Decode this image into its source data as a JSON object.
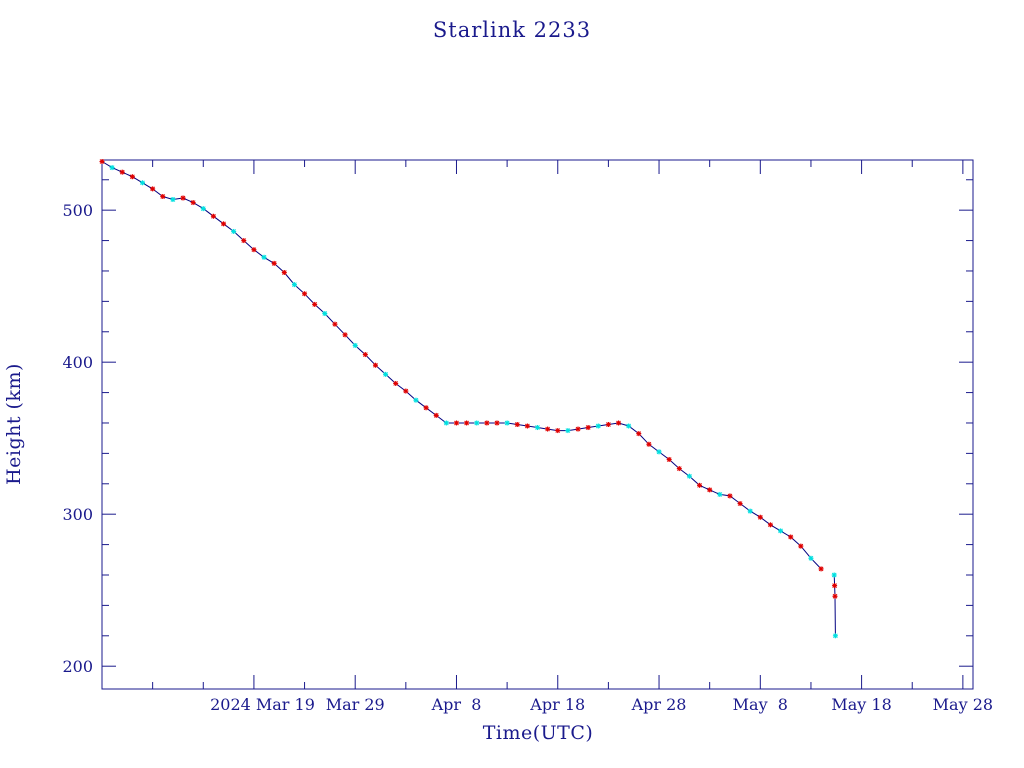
{
  "chart_data": {
    "type": "line",
    "title": "Starlink 2233",
    "xlabel": "Time(UTC)",
    "ylabel": "Height (km)",
    "x_tick_labels": [
      "2024 Mar 19",
      "Mar 29",
      "Apr  8",
      "Apr 18",
      "Apr 28",
      "May  8",
      "May 18",
      "May 28"
    ],
    "y_tick_labels": [
      "200",
      "300",
      "400",
      "500"
    ],
    "xlim": [
      "2024-03-04",
      "2024-05-29"
    ],
    "ylim": [
      185,
      533
    ],
    "colors": {
      "frame": "#1a1a8c",
      "line": "#000080",
      "marker_a": "#e00000",
      "marker_b": "#00e0e0"
    },
    "series": [
      {
        "x": [
          "2024-03-04",
          "2024-03-05",
          "2024-03-06",
          "2024-03-07",
          "2024-03-08",
          "2024-03-09",
          "2024-03-10",
          "2024-03-11",
          "2024-03-12",
          "2024-03-13",
          "2024-03-14",
          "2024-03-15",
          "2024-03-16",
          "2024-03-17",
          "2024-03-18",
          "2024-03-19",
          "2024-03-20",
          "2024-03-21",
          "2024-03-22",
          "2024-03-23",
          "2024-03-24",
          "2024-03-25",
          "2024-03-26",
          "2024-03-27",
          "2024-03-28",
          "2024-03-29",
          "2024-03-30",
          "2024-03-31",
          "2024-04-01",
          "2024-04-02",
          "2024-04-03",
          "2024-04-04",
          "2024-04-05",
          "2024-04-06",
          "2024-04-07",
          "2024-04-08",
          "2024-04-09",
          "2024-04-10",
          "2024-04-11",
          "2024-04-12",
          "2024-04-13",
          "2024-04-14",
          "2024-04-15",
          "2024-04-16",
          "2024-04-17",
          "2024-04-18",
          "2024-04-19",
          "2024-04-20",
          "2024-04-21",
          "2024-04-22",
          "2024-04-23",
          "2024-04-24",
          "2024-04-25",
          "2024-04-26",
          "2024-04-27",
          "2024-04-28",
          "2024-04-29",
          "2024-04-30",
          "2024-05-01",
          "2024-05-02",
          "2024-05-03",
          "2024-05-04",
          "2024-05-05",
          "2024-05-06",
          "2024-05-07",
          "2024-05-08",
          "2024-05-09",
          "2024-05-10",
          "2024-05-11",
          "2024-05-12",
          "2024-05-13",
          "2024-05-14"
        ],
        "y": [
          532,
          528,
          525,
          522,
          518,
          514,
          509,
          507,
          508,
          505,
          501,
          496,
          491,
          486,
          480,
          474,
          469,
          465,
          459,
          451,
          445,
          438,
          432,
          425,
          418,
          411,
          405,
          398,
          392,
          386,
          381,
          375,
          370,
          365,
          360,
          360,
          360,
          360,
          360,
          360,
          360,
          359,
          358,
          357,
          356,
          355,
          355,
          356,
          357,
          358,
          359,
          360,
          358,
          353,
          346,
          341,
          336,
          330,
          325,
          319,
          316,
          313,
          312,
          307,
          302,
          298,
          293,
          289,
          285,
          279,
          271,
          264
        ]
      },
      {
        "x": [
          "2024-05-15",
          "2024-05-15",
          "2024-05-15",
          "2024-05-15"
        ],
        "y": [
          260,
          253,
          246,
          220
        ]
      }
    ]
  }
}
